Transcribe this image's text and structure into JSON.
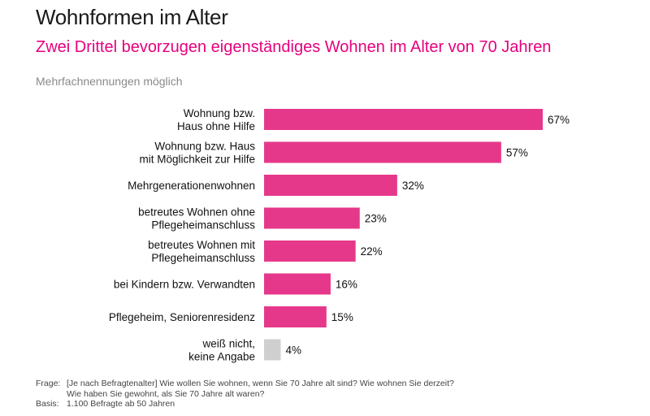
{
  "header": {
    "title": "Wohnformen im Alter",
    "subtitle": "Zwei Drittel bevorzugen eigenständiges Wohnen im Alter von 70 Jahren",
    "note": "Mehrfachnennungen möglich"
  },
  "chart_data": {
    "type": "bar",
    "orientation": "horizontal",
    "categories": [
      [
        "Wohnung bzw.",
        "Haus ohne Hilfe"
      ],
      [
        "Wohnung bzw. Haus",
        "mit Möglichkeit zur Hilfe"
      ],
      [
        "Mehrgenerationenwohnen"
      ],
      [
        "betreutes Wohnen ohne",
        "Pflegeheimanschluss"
      ],
      [
        "betreutes Wohnen mit",
        "Pflegeheimanschluss"
      ],
      [
        "bei Kindern bzw. Verwandten"
      ],
      [
        "Pflegeheim, Seniorenresidenz"
      ],
      [
        "weiß nicht,",
        "keine Angabe"
      ]
    ],
    "values": [
      67,
      57,
      32,
      23,
      22,
      16,
      15,
      4
    ],
    "value_labels": [
      "67%",
      "57%",
      "32%",
      "23%",
      "22%",
      "16%",
      "15%",
      "4%"
    ],
    "unit": "%",
    "xlim": [
      0,
      100
    ],
    "grid": false,
    "colors": [
      "#e6388a",
      "#e6388a",
      "#e6388a",
      "#e6388a",
      "#e6388a",
      "#e6388a",
      "#e6388a",
      "#cfcfcf"
    ]
  },
  "footer": {
    "frage_key": "Frage:",
    "frage_text": "[Je nach Befragtenalter] Wie wollen Sie wohnen, wenn Sie 70 Jahre alt sind? Wie wohnen Sie derzeit?\nWie haben Sie gewohnt, als Sie 70 Jahre alt waren?",
    "basis_key": "Basis:",
    "basis_text": "1.100 Befragte ab 50 Jahren"
  }
}
